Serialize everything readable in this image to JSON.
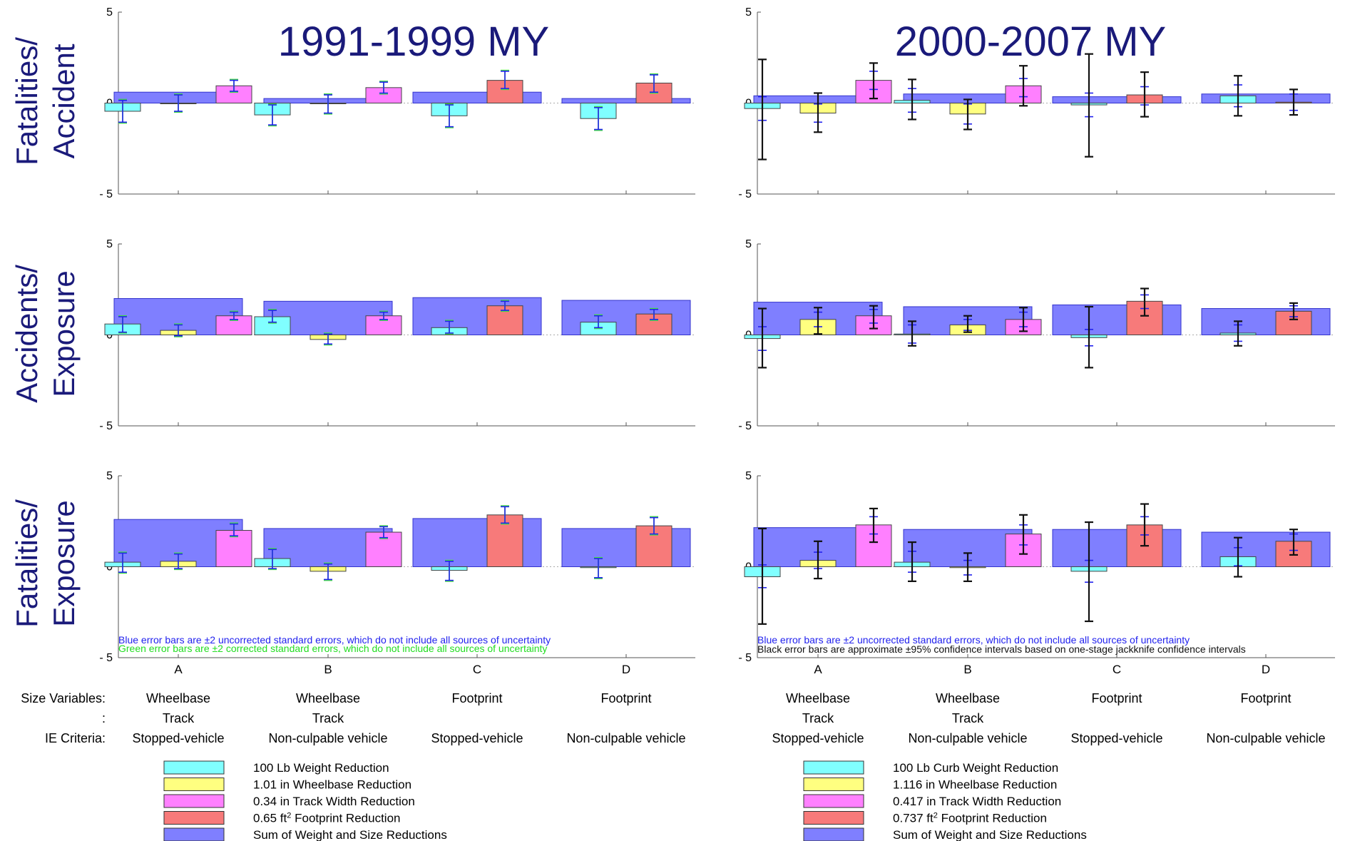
{
  "titles": {
    "left": "1991-1999 MY",
    "right": "2000-2007 MY"
  },
  "row_labels": [
    {
      "line1": "Fatalities/",
      "line2": "Accident"
    },
    {
      "line1": "Accidents/",
      "line2": "Exposure"
    },
    {
      "line1": "Fatalities/",
      "line2": "Exposure"
    }
  ],
  "y_ticks": [
    "5",
    "0",
    "- 5"
  ],
  "x_ticks": [
    "A",
    "B",
    "C",
    "D"
  ],
  "info_labels": {
    "size": "Size Variables:",
    "colon": ":",
    "ie": "IE Criteria:"
  },
  "groups": [
    {
      "size1": "Wheelbase",
      "size2": "Track",
      "ie": "Stopped-vehicle"
    },
    {
      "size1": "Wheelbase",
      "size2": "Track",
      "ie": "Non-culpable vehicle"
    },
    {
      "size1": "Footprint",
      "size2": "",
      "ie": "Stopped-vehicle"
    },
    {
      "size1": "Footprint",
      "size2": "",
      "ie": "Non-culpable vehicle"
    }
  ],
  "notes": {
    "left": [
      {
        "text": "Blue error bars are ±2 uncorrected standard errors, which do not include all sources of uncertainty",
        "color": "#2222ee"
      },
      {
        "text": "Green error bars are ±2 corrected standard errors, which do not include all sources of uncertainty",
        "color": "#22dd22"
      }
    ],
    "right": [
      {
        "text": "Blue error bars are ±2 uncorrected standard errors, which do not include all sources of uncertainty",
        "color": "#2222ee"
      },
      {
        "text": "Black error bars are approximate ±95% confidence intervals based on one-stage jackknife confidence intervals",
        "color": "#111111"
      }
    ]
  },
  "legends": {
    "left": [
      {
        "color": "#80ffff",
        "pre": "100 Lb Weight Reduction",
        "sup": "",
        "post": ""
      },
      {
        "color": "#ffff80",
        "pre": "1.01 in Wheelbase Reduction",
        "sup": "",
        "post": ""
      },
      {
        "color": "#ff80ff",
        "pre": "0.34 in Track Width Reduction",
        "sup": "",
        "post": ""
      },
      {
        "color": "#f77a7a",
        "pre": "0.65 ft",
        "sup": "2",
        "post": " Footprint Reduction"
      },
      {
        "color": "#7f7fff",
        "pre": "Sum of Weight and Size Reductions",
        "sup": "",
        "post": ""
      }
    ],
    "right": [
      {
        "color": "#80ffff",
        "pre": "100 Lb Curb Weight Reduction",
        "sup": "",
        "post": ""
      },
      {
        "color": "#ffff80",
        "pre": "1.116 in Wheelbase Reduction",
        "sup": "",
        "post": ""
      },
      {
        "color": "#ff80ff",
        "pre": "0.417 in Track Width Reduction",
        "sup": "",
        "post": ""
      },
      {
        "color": "#f77a7a",
        "pre": "0.737 ft",
        "sup": "2",
        "post": " Footprint Reduction"
      },
      {
        "color": "#7f7fff",
        "pre": "Sum of Weight and Size Reductions",
        "sup": "",
        "post": ""
      }
    ]
  },
  "colors": {
    "weight": "#80ffff",
    "wheelbase": "#ffff80",
    "track": "#ff80ff",
    "footprint": "#f77a7a",
    "sum": "#7f7fff",
    "title": "#1a1a7a",
    "blue_err": "#2222ee",
    "green_err": "#44dd44",
    "black_err": "#111111"
  },
  "chart_data": [
    {
      "type": "bar",
      "panel": "1991-1999 MY: Fatalities/Accident",
      "ylim": [
        -5,
        5
      ],
      "categories": [
        "A",
        "B",
        "C",
        "D"
      ],
      "sum": [
        0.6,
        0.25,
        0.6,
        0.25
      ],
      "bars": [
        [
          {
            "k": "weight",
            "v": -0.45,
            "blue": [
              -1.05,
              0.15
            ],
            "green": [
              -1.1,
              0.2
            ]
          },
          {
            "k": "wheelbase",
            "v": 0.0,
            "blue": [
              -0.45,
              0.45
            ],
            "green": [
              -0.5,
              0.5
            ]
          },
          {
            "k": "track",
            "v": 0.95,
            "blue": [
              0.65,
              1.25
            ],
            "green": [
              0.6,
              1.3
            ]
          }
        ],
        [
          {
            "k": "weight",
            "v": -0.65,
            "blue": [
              -1.2,
              -0.1
            ],
            "green": [
              -1.25,
              -0.05
            ]
          },
          {
            "k": "wheelbase",
            "v": 0.0,
            "blue": [
              -0.55,
              0.45
            ],
            "green": [
              -0.6,
              0.5
            ]
          },
          {
            "k": "track",
            "v": 0.85,
            "blue": [
              0.55,
              1.15
            ],
            "green": [
              0.5,
              1.2
            ]
          }
        ],
        [
          {
            "k": "weight",
            "v": -0.7,
            "blue": [
              -1.3,
              -0.1
            ],
            "green": [
              -1.35,
              -0.05
            ]
          },
          {
            "k": "footprint",
            "v": 1.25,
            "blue": [
              0.8,
              1.75
            ],
            "green": [
              0.75,
              1.8
            ]
          }
        ],
        [
          {
            "k": "weight",
            "v": -0.85,
            "blue": [
              -1.45,
              -0.25
            ],
            "green": [
              -1.5,
              -0.2
            ]
          },
          {
            "k": "footprint",
            "v": 1.1,
            "blue": [
              0.6,
              1.55
            ],
            "green": [
              0.55,
              1.6
            ]
          }
        ]
      ]
    },
    {
      "type": "bar",
      "panel": "1991-1999 MY: Accidents/Exposure",
      "ylim": [
        -5,
        5
      ],
      "categories": [
        "A",
        "B",
        "C",
        "D"
      ],
      "sum": [
        2.0,
        1.85,
        2.05,
        1.9
      ],
      "bars": [
        [
          {
            "k": "weight",
            "v": 0.6,
            "blue": [
              0.15,
              1.0
            ],
            "green": [
              0.1,
              1.05
            ]
          },
          {
            "k": "wheelbase",
            "v": 0.25,
            "blue": [
              -0.05,
              0.55
            ],
            "green": [
              -0.1,
              0.6
            ]
          },
          {
            "k": "track",
            "v": 1.05,
            "blue": [
              0.85,
              1.25
            ],
            "green": [
              0.8,
              1.3
            ]
          }
        ],
        [
          {
            "k": "weight",
            "v": 1.0,
            "blue": [
              0.7,
              1.35
            ],
            "green": [
              0.65,
              1.4
            ]
          },
          {
            "k": "wheelbase",
            "v": -0.25,
            "blue": [
              -0.5,
              0.05
            ],
            "green": [
              -0.55,
              0.1
            ]
          },
          {
            "k": "track",
            "v": 1.05,
            "blue": [
              0.85,
              1.25
            ],
            "green": [
              0.8,
              1.3
            ]
          }
        ],
        [
          {
            "k": "weight",
            "v": 0.4,
            "blue": [
              0.1,
              0.75
            ],
            "green": [
              0.05,
              0.8
            ]
          },
          {
            "k": "footprint",
            "v": 1.6,
            "blue": [
              1.35,
              1.85
            ],
            "green": [
              1.3,
              1.9
            ]
          }
        ],
        [
          {
            "k": "weight",
            "v": 0.7,
            "blue": [
              0.4,
              1.05
            ],
            "green": [
              0.35,
              1.1
            ]
          },
          {
            "k": "footprint",
            "v": 1.15,
            "blue": [
              0.85,
              1.4
            ],
            "green": [
              0.8,
              1.45
            ]
          }
        ]
      ]
    },
    {
      "type": "bar",
      "panel": "1991-1999 MY: Fatalities/Exposure",
      "ylim": [
        -5,
        5
      ],
      "categories": [
        "A",
        "B",
        "C",
        "D"
      ],
      "sum": [
        2.6,
        2.1,
        2.65,
        2.1
      ],
      "bars": [
        [
          {
            "k": "weight",
            "v": 0.25,
            "blue": [
              -0.3,
              0.75
            ],
            "green": [
              -0.35,
              0.8
            ]
          },
          {
            "k": "wheelbase",
            "v": 0.3,
            "blue": [
              -0.1,
              0.7
            ],
            "green": [
              -0.15,
              0.75
            ]
          },
          {
            "k": "track",
            "v": 2.0,
            "blue": [
              1.7,
              2.35
            ],
            "green": [
              1.65,
              2.4
            ]
          }
        ],
        [
          {
            "k": "weight",
            "v": 0.45,
            "blue": [
              -0.1,
              0.95
            ],
            "green": [
              -0.15,
              1.0
            ]
          },
          {
            "k": "wheelbase",
            "v": -0.25,
            "blue": [
              -0.7,
              0.15
            ],
            "green": [
              -0.75,
              0.2
            ]
          },
          {
            "k": "track",
            "v": 1.9,
            "blue": [
              1.6,
              2.2
            ],
            "green": [
              1.55,
              2.25
            ]
          }
        ],
        [
          {
            "k": "weight",
            "v": -0.2,
            "blue": [
              -0.75,
              0.3
            ],
            "green": [
              -0.8,
              0.35
            ]
          },
          {
            "k": "footprint",
            "v": 2.85,
            "blue": [
              2.4,
              3.3
            ],
            "green": [
              2.35,
              3.35
            ]
          }
        ],
        [
          {
            "k": "weight",
            "v": -0.05,
            "blue": [
              -0.6,
              0.45
            ],
            "green": [
              -0.65,
              0.5
            ]
          },
          {
            "k": "footprint",
            "v": 2.25,
            "blue": [
              1.8,
              2.7
            ],
            "green": [
              1.75,
              2.75
            ]
          }
        ]
      ]
    },
    {
      "type": "bar",
      "panel": "2000-2007 MY: Fatalities/Accident",
      "ylim": [
        -5,
        5
      ],
      "categories": [
        "A",
        "B",
        "C",
        "D"
      ],
      "sum": [
        0.4,
        0.5,
        0.35,
        0.5
      ],
      "bars": [
        [
          {
            "k": "weight",
            "v": -0.3,
            "blue": [
              -0.95,
              0.35
            ],
            "black": [
              -3.1,
              2.4
            ]
          },
          {
            "k": "wheelbase",
            "v": -0.55,
            "blue": [
              -1.05,
              -0.05
            ],
            "black": [
              -1.6,
              0.55
            ]
          },
          {
            "k": "track",
            "v": 1.25,
            "blue": [
              0.75,
              1.75
            ],
            "black": [
              0.25,
              2.2
            ]
          }
        ],
        [
          {
            "k": "weight",
            "v": 0.15,
            "blue": [
              -0.5,
              0.8
            ],
            "black": [
              -0.9,
              1.3
            ]
          },
          {
            "k": "wheelbase",
            "v": -0.6,
            "blue": [
              -1.15,
              -0.05
            ],
            "black": [
              -1.45,
              0.2
            ]
          },
          {
            "k": "track",
            "v": 0.95,
            "blue": [
              0.35,
              1.35
            ],
            "black": [
              -0.15,
              2.05
            ]
          }
        ],
        [
          {
            "k": "weight",
            "v": -0.1,
            "blue": [
              -0.75,
              0.55
            ],
            "black": [
              -2.95,
              2.7
            ]
          },
          {
            "k": "footprint",
            "v": 0.45,
            "blue": [
              -0.1,
              0.9
            ],
            "black": [
              -0.75,
              1.7
            ]
          }
        ],
        [
          {
            "k": "weight",
            "v": 0.4,
            "blue": [
              -0.2,
              1.0
            ],
            "black": [
              -0.7,
              1.5
            ]
          },
          {
            "k": "footprint",
            "v": 0.05,
            "blue": [
              -0.4,
              0.5
            ],
            "black": [
              -0.65,
              0.75
            ]
          }
        ]
      ]
    },
    {
      "type": "bar",
      "panel": "2000-2007 MY: Accidents/Exposure",
      "ylim": [
        -5,
        5
      ],
      "categories": [
        "A",
        "B",
        "C",
        "D"
      ],
      "sum": [
        1.8,
        1.55,
        1.65,
        1.45
      ],
      "bars": [
        [
          {
            "k": "weight",
            "v": -0.2,
            "blue": [
              -0.85,
              0.45
            ],
            "black": [
              -1.8,
              1.45
            ]
          },
          {
            "k": "wheelbase",
            "v": 0.85,
            "blue": [
              0.45,
              1.25
            ],
            "black": [
              0.05,
              1.5
            ]
          },
          {
            "k": "track",
            "v": 1.05,
            "blue": [
              0.65,
              1.4
            ],
            "black": [
              0.35,
              1.6
            ]
          }
        ],
        [
          {
            "k": "weight",
            "v": 0.05,
            "blue": [
              -0.45,
              0.55
            ],
            "black": [
              -0.6,
              0.75
            ]
          },
          {
            "k": "wheelbase",
            "v": 0.55,
            "blue": [
              0.25,
              0.85
            ],
            "black": [
              0.15,
              1.05
            ]
          },
          {
            "k": "track",
            "v": 0.85,
            "blue": [
              0.45,
              1.25
            ],
            "black": [
              0.2,
              1.5
            ]
          }
        ],
        [
          {
            "k": "weight",
            "v": -0.15,
            "blue": [
              -0.6,
              0.3
            ],
            "black": [
              -1.8,
              1.55
            ]
          },
          {
            "k": "footprint",
            "v": 1.85,
            "blue": [
              1.45,
              2.2
            ],
            "black": [
              1.05,
              2.55
            ]
          }
        ],
        [
          {
            "k": "weight",
            "v": 0.1,
            "blue": [
              -0.35,
              0.55
            ],
            "black": [
              -0.6,
              0.75
            ]
          },
          {
            "k": "footprint",
            "v": 1.3,
            "blue": [
              1.0,
              1.6
            ],
            "black": [
              0.85,
              1.75
            ]
          }
        ]
      ]
    },
    {
      "type": "bar",
      "panel": "2000-2007 MY: Fatalities/Exposure",
      "ylim": [
        -5,
        5
      ],
      "categories": [
        "A",
        "B",
        "C",
        "D"
      ],
      "sum": [
        2.15,
        2.05,
        2.05,
        1.9
      ],
      "bars": [
        [
          {
            "k": "weight",
            "v": -0.55,
            "blue": [
              -1.15,
              0.1
            ],
            "black": [
              -3.15,
              2.1
            ]
          },
          {
            "k": "wheelbase",
            "v": 0.35,
            "blue": [
              -0.1,
              0.8
            ],
            "black": [
              -0.65,
              1.4
            ]
          },
          {
            "k": "track",
            "v": 2.3,
            "blue": [
              1.8,
              2.75
            ],
            "black": [
              1.35,
              3.2
            ]
          }
        ],
        [
          {
            "k": "weight",
            "v": 0.25,
            "blue": [
              -0.3,
              0.85
            ],
            "black": [
              -0.8,
              1.35
            ]
          },
          {
            "k": "wheelbase",
            "v": -0.05,
            "blue": [
              -0.45,
              0.35
            ],
            "black": [
              -0.8,
              0.75
            ]
          },
          {
            "k": "track",
            "v": 1.8,
            "blue": [
              1.2,
              2.3
            ],
            "black": [
              0.7,
              2.85
            ]
          }
        ],
        [
          {
            "k": "weight",
            "v": -0.25,
            "blue": [
              -0.85,
              0.35
            ],
            "black": [
              -3.0,
              2.45
            ]
          },
          {
            "k": "footprint",
            "v": 2.3,
            "blue": [
              1.75,
              2.75
            ],
            "black": [
              1.15,
              3.45
            ]
          }
        ],
        [
          {
            "k": "weight",
            "v": 0.55,
            "blue": [
              0.05,
              1.05
            ],
            "black": [
              -0.55,
              1.6
            ]
          },
          {
            "k": "footprint",
            "v": 1.4,
            "blue": [
              0.9,
              1.8
            ],
            "black": [
              0.65,
              2.05
            ]
          }
        ]
      ]
    }
  ]
}
